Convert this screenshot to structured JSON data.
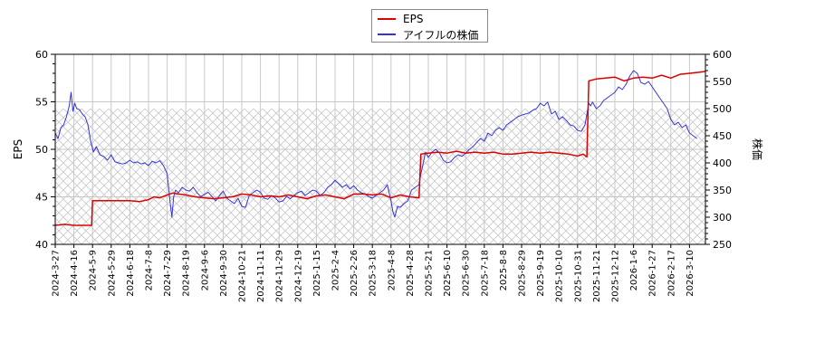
{
  "chart_data": {
    "type": "line",
    "title": "",
    "legend": {
      "position": "top-center",
      "entries": [
        {
          "label": "EPS",
          "color": "#dd0000"
        },
        {
          "label": "アイフルの株価",
          "color": "#3333dd"
        }
      ]
    },
    "y_left": {
      "label": "EPS",
      "range": [
        40,
        60
      ],
      "ticks": [
        40,
        45,
        50,
        55,
        60
      ]
    },
    "y_right": {
      "label": "株価",
      "range": [
        250,
        600
      ],
      "ticks": [
        250,
        300,
        350,
        400,
        450,
        500,
        550,
        600
      ]
    },
    "x_tick_labels": [
      "2024-3-27",
      "2024-4-16",
      "2024-5-9",
      "2024-5-29",
      "2024-6-18",
      "2024-7-8",
      "2024-7-29",
      "2024-8-19",
      "2024-9-6",
      "2024-9-30",
      "2024-10-21",
      "2024-11-11",
      "2024-11-29",
      "2024-12-19",
      "2025-1-15",
      "2025-2-4",
      "2025-2-26",
      "2025-3-18",
      "2025-4-8",
      "2025-4-28",
      "2025-5-21",
      "2025-6-10",
      "2025-6-30",
      "2025-7-18",
      "2025-8-8",
      "2025-8-29",
      "2025-9-19",
      "2025-10-10",
      "2025-10-31",
      "2025-11-21",
      "2025-12-12",
      "2026-1-6",
      "2026-1-27",
      "2026-2-17",
      "2026-3-10"
    ],
    "grid": true,
    "hatched_region": {
      "axis": "right",
      "from": 250,
      "to": 500
    },
    "series": [
      {
        "name": "EPS",
        "axis": "left",
        "color": "#dd0000",
        "x_index": [
          0,
          0.5,
          1.0,
          1.5,
          1.95,
          2.0,
          2.5,
          3,
          3.5,
          4,
          4.5,
          5,
          5.3,
          5.6,
          6,
          6.3,
          6.6,
          7,
          7.5,
          8,
          8.5,
          9,
          9.5,
          10,
          10.5,
          11,
          11.5,
          12,
          12.5,
          13,
          13.5,
          14,
          14.5,
          15,
          15.5,
          16,
          16.5,
          17,
          17.5,
          18,
          18.5,
          19,
          19.5,
          19.6,
          20,
          20.5,
          21,
          21.5,
          22,
          22.5,
          23,
          23.5,
          24,
          24.5,
          25,
          25.5,
          26,
          26.5,
          27,
          27.5,
          28,
          28.3,
          28.5,
          28.6,
          29,
          29.5,
          30,
          30.5,
          31,
          31.5,
          32,
          32.5,
          33,
          33.5,
          34,
          34.5,
          34.85
        ],
        "values": [
          42.0,
          42.1,
          42.0,
          42.0,
          42.0,
          44.6,
          44.6,
          44.6,
          44.6,
          44.6,
          44.5,
          44.7,
          45.0,
          44.9,
          45.2,
          45.4,
          45.3,
          45.2,
          45.0,
          44.9,
          44.8,
          44.9,
          45.0,
          45.3,
          45.2,
          45.0,
          45.1,
          45.0,
          45.2,
          45.0,
          44.8,
          45.1,
          45.2,
          45.0,
          44.8,
          45.3,
          45.3,
          45.2,
          45.3,
          44.9,
          45.2,
          45.0,
          44.9,
          49.5,
          49.6,
          49.7,
          49.6,
          49.8,
          49.6,
          49.7,
          49.6,
          49.7,
          49.5,
          49.5,
          49.6,
          49.7,
          49.6,
          49.7,
          49.6,
          49.5,
          49.3,
          49.5,
          49.2,
          57.2,
          57.4,
          57.5,
          57.6,
          57.2,
          57.5,
          57.6,
          57.5,
          57.8,
          57.5,
          57.9,
          58.0,
          58.1,
          58.2
        ]
      },
      {
        "name": "アイフルの株価",
        "axis": "right",
        "color": "#3333dd",
        "x_index": [
          0,
          0.15,
          0.3,
          0.45,
          0.6,
          0.75,
          0.85,
          0.95,
          1.05,
          1.15,
          1.3,
          1.45,
          1.6,
          1.75,
          1.9,
          2.05,
          2.2,
          2.4,
          2.6,
          2.8,
          3.0,
          3.2,
          3.4,
          3.6,
          3.8,
          4.0,
          4.2,
          4.4,
          4.6,
          4.8,
          5.0,
          5.2,
          5.4,
          5.6,
          5.8,
          6.0,
          6.15,
          6.25,
          6.35,
          6.45,
          6.6,
          6.8,
          7.0,
          7.2,
          7.4,
          7.6,
          7.8,
          8.0,
          8.2,
          8.4,
          8.6,
          8.8,
          9.0,
          9.2,
          9.4,
          9.6,
          9.8,
          10.0,
          10.2,
          10.4,
          10.6,
          10.8,
          11.0,
          11.2,
          11.4,
          11.6,
          11.8,
          12.0,
          12.2,
          12.4,
          12.6,
          12.8,
          13.0,
          13.2,
          13.4,
          13.6,
          13.8,
          14.0,
          14.2,
          14.4,
          14.6,
          14.8,
          15.0,
          15.2,
          15.4,
          15.6,
          15.8,
          16.0,
          16.2,
          16.4,
          16.6,
          16.8,
          17.0,
          17.2,
          17.4,
          17.6,
          17.8,
          18.0,
          18.1,
          18.2,
          18.35,
          18.5,
          18.7,
          18.9,
          19.1,
          19.3,
          19.5,
          19.6,
          19.7,
          19.85,
          20.0,
          20.2,
          20.4,
          20.6,
          20.8,
          21.0,
          21.2,
          21.4,
          21.6,
          21.8,
          22.0,
          22.2,
          22.4,
          22.6,
          22.8,
          23.0,
          23.2,
          23.4,
          23.6,
          23.8,
          24.0,
          24.2,
          24.4,
          24.6,
          24.8,
          25.0,
          25.2,
          25.4,
          25.6,
          25.8,
          26.0,
          26.2,
          26.4,
          26.6,
          26.8,
          27.0,
          27.2,
          27.4,
          27.6,
          27.8,
          28.0,
          28.2,
          28.4,
          28.6,
          28.7,
          28.8,
          29.0,
          29.2,
          29.4,
          29.6,
          29.8,
          30.0,
          30.2,
          30.4,
          30.6,
          30.8,
          31.0,
          31.2,
          31.4,
          31.6,
          31.8,
          32.0,
          32.2,
          32.4,
          32.6,
          32.8,
          33.0,
          33.2,
          33.4,
          33.6,
          33.8,
          34.0,
          34.2,
          34.4,
          34.6,
          34.85
        ],
        "values": [
          455,
          445,
          465,
          470,
          485,
          505,
          530,
          495,
          510,
          500,
          498,
          490,
          485,
          470,
          440,
          420,
          430,
          415,
          412,
          405,
          415,
          402,
          400,
          398,
          400,
          405,
          400,
          402,
          398,
          400,
          395,
          403,
          400,
          404,
          395,
          380,
          330,
          300,
          338,
          350,
          345,
          355,
          350,
          348,
          355,
          345,
          338,
          342,
          346,
          338,
          330,
          340,
          348,
          335,
          330,
          325,
          335,
          320,
          318,
          340,
          345,
          350,
          346,
          335,
          333,
          340,
          335,
          328,
          330,
          338,
          334,
          340,
          345,
          348,
          340,
          345,
          350,
          348,
          340,
          345,
          355,
          360,
          368,
          362,
          355,
          360,
          352,
          358,
          350,
          345,
          343,
          338,
          335,
          340,
          345,
          350,
          360,
          330,
          310,
          300,
          320,
          318,
          325,
          330,
          350,
          355,
          360,
          380,
          395,
          420,
          410,
          420,
          425,
          418,
          405,
          400,
          402,
          410,
          415,
          412,
          418,
          425,
          430,
          438,
          445,
          440,
          455,
          450,
          460,
          465,
          460,
          470,
          475,
          480,
          485,
          488,
          490,
          492,
          497,
          500,
          510,
          505,
          512,
          490,
          495,
          480,
          485,
          478,
          470,
          468,
          460,
          458,
          470,
          510,
          505,
          512,
          500,
          505,
          515,
          520,
          525,
          530,
          540,
          535,
          545,
          560,
          570,
          565,
          548,
          545,
          550,
          540,
          530,
          520,
          510,
          500,
          480,
          470,
          475,
          465,
          470,
          455,
          450,
          445
        ]
      }
    ]
  }
}
